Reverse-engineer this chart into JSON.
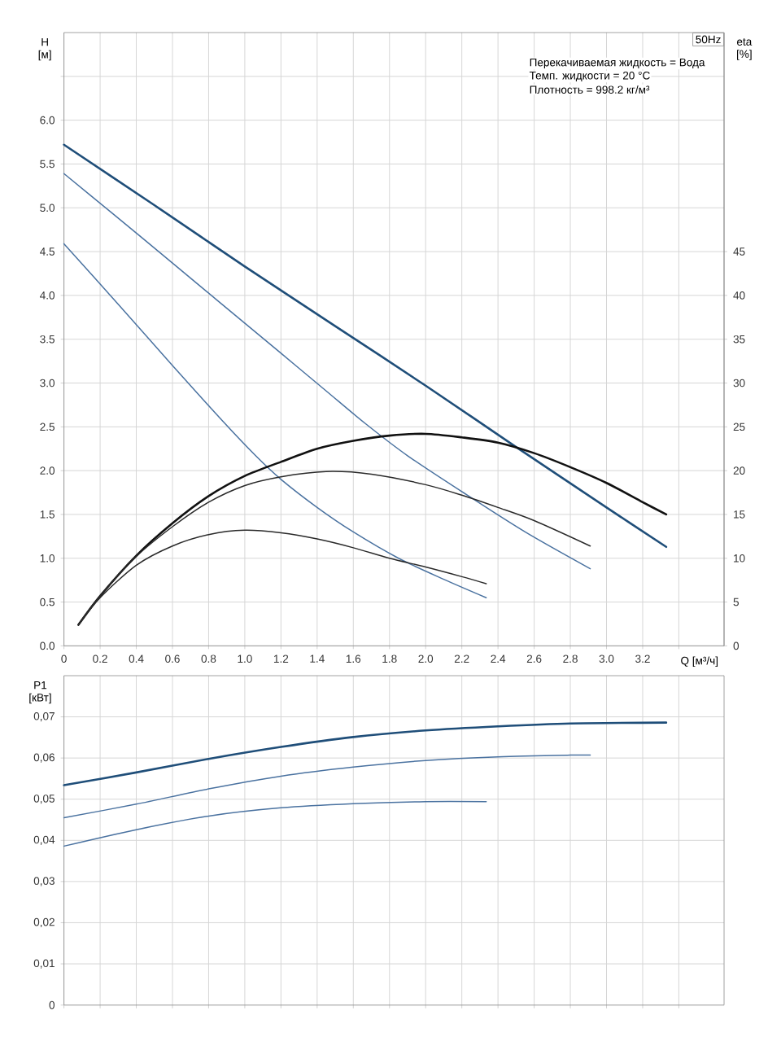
{
  "chart_data": [
    {
      "type": "line",
      "title": "50Hz",
      "annotations": [
        "Перекачиваемая жидкость = Вода",
        "Темп. жидкости = 20 °C",
        "Плотность = 998.2 кг/м³"
      ],
      "xlabel": "Q [м³/ч]",
      "ylabel": "H [м]",
      "y2label": "eta [%]",
      "xlim": [
        0,
        3.65
      ],
      "ylim": [
        0,
        7
      ],
      "y2lim": [
        0,
        70
      ],
      "xticks": [
        0,
        0.2,
        0.4,
        0.6,
        0.8,
        {
          "value": 1,
          "label": "1.0"
        },
        1.2,
        1.4,
        1.6,
        1.8,
        {
          "value": 2,
          "label": "2.0"
        },
        2.2,
        2.4,
        2.6,
        2.8,
        {
          "value": 3,
          "label": "3.0"
        },
        3.2,
        {
          "value": 3.4,
          "label": null
        }
      ],
      "yticks": [
        {
          "value": 0,
          "label": "0.0"
        },
        0.5,
        {
          "value": 1,
          "label": "1.0"
        },
        1.5,
        {
          "value": 2,
          "label": "2.0"
        },
        2.5,
        {
          "value": 3,
          "label": "3.0"
        },
        3.5,
        {
          "value": 4,
          "label": "4.0"
        },
        4.5,
        {
          "value": 5,
          "label": "5.0"
        },
        5.5,
        {
          "value": 6,
          "label": "6.0"
        },
        {
          "value": 6.5,
          "label": null
        }
      ],
      "y2ticks": [
        0,
        5,
        10,
        15,
        20,
        25,
        30,
        35,
        40,
        45
      ],
      "grid": true,
      "series": [
        {
          "color": "#1f4e79",
          "x": [
            0,
            0.5,
            1.0,
            1.5,
            2.0,
            2.5,
            3.0,
            3.33
          ],
          "values": [
            5.72,
            5.03,
            4.33,
            3.65,
            2.97,
            2.27,
            1.58,
            1.13
          ]
        },
        {
          "color": "#4a72a0",
          "x": [
            0,
            0.26,
            0.6,
            0.85,
            1.2,
            1.45,
            1.665,
            1.9,
            2.2,
            2.55,
            2.91
          ],
          "values": [
            5.39,
            4.95,
            4.37,
            3.94,
            3.34,
            2.91,
            2.54,
            2.17,
            1.76,
            1.3,
            0.88
          ]
        },
        {
          "color": "#4a72a0",
          "x": [
            0,
            0.3,
            0.6,
            0.88,
            1.06,
            1.2,
            1.4,
            1.6,
            1.85,
            2.1,
            2.335
          ],
          "values": [
            4.59,
            3.9,
            3.2,
            2.56,
            2.17,
            1.9,
            1.58,
            1.3,
            1.0,
            0.76,
            0.55
          ]
        },
        {
          "color": "#111111",
          "axis": "y2",
          "x": [
            0.08,
            0.2,
            0.4,
            0.6,
            0.8,
            1.0,
            1.2,
            1.4,
            1.6,
            1.8,
            2.0,
            2.2,
            2.4,
            2.6,
            2.8,
            3.0,
            3.2,
            3.33
          ],
          "values": [
            2.4,
            5.7,
            10.3,
            14.0,
            17.1,
            19.4,
            21.0,
            22.5,
            23.4,
            24.0,
            24.2,
            23.8,
            23.2,
            22.0,
            20.4,
            18.6,
            16.4,
            15.0
          ]
        },
        {
          "color": "#2a2a2a",
          "axis": "y2",
          "x": [
            0.08,
            0.2,
            0.4,
            0.6,
            0.8,
            1.0,
            1.2,
            1.45,
            1.7,
            2.0,
            2.2,
            2.4,
            2.6,
            2.91
          ],
          "values": [
            2.4,
            5.7,
            10.2,
            13.6,
            16.4,
            18.3,
            19.3,
            19.9,
            19.6,
            18.4,
            17.2,
            15.8,
            14.3,
            11.4
          ]
        },
        {
          "color": "#2a2a2a",
          "axis": "y2",
          "x": [
            0.08,
            0.2,
            0.4,
            0.6,
            0.8,
            1.0,
            1.2,
            1.4,
            1.6,
            1.8,
            2.0,
            2.2,
            2.335
          ],
          "values": [
            2.4,
            5.5,
            9.2,
            11.4,
            12.7,
            13.2,
            12.9,
            12.2,
            11.2,
            10.0,
            9.0,
            7.9,
            7.1
          ]
        }
      ]
    },
    {
      "type": "line",
      "ylabel": "P1 [кВт]",
      "xlim": [
        0,
        3.65
      ],
      "ylim": [
        0,
        0.08
      ],
      "tick_labels": "y",
      "grid": true,
      "xticks": [
        0,
        0.2,
        0.4,
        0.6,
        0.8,
        1.0,
        1.2,
        1.4,
        1.6,
        1.8,
        2.0,
        2.2,
        2.4,
        2.6,
        2.8,
        3.0,
        3.2,
        3.4
      ],
      "yticks": [
        0,
        {
          "value": 0.01,
          "label": "0,01"
        },
        {
          "value": 0.02,
          "label": "0,02"
        },
        {
          "value": 0.03,
          "label": "0,03"
        },
        {
          "value": 0.04,
          "label": "0,04"
        },
        {
          "value": 0.05,
          "label": "0,05"
        },
        {
          "value": 0.06,
          "label": "0,06"
        },
        {
          "value": 0.07,
          "label": "0,07"
        }
      ],
      "series": [
        {
          "color": "#1f4e79",
          "x": [
            0,
            0.4,
            0.8,
            1.2,
            1.6,
            2.0,
            2.4,
            2.8,
            3.33
          ],
          "values": [
            0.0534,
            0.0565,
            0.0598,
            0.0627,
            0.0651,
            0.0667,
            0.0677,
            0.0684,
            0.0686
          ]
        },
        {
          "color": "#4a72a0",
          "x": [
            0,
            0.4,
            0.8,
            1.2,
            1.6,
            2.0,
            2.4,
            2.8,
            2.91
          ],
          "values": [
            0.0455,
            0.0488,
            0.0525,
            0.0556,
            0.0578,
            0.0594,
            0.0603,
            0.0607,
            0.0607
          ]
        },
        {
          "color": "#4a72a0",
          "x": [
            0,
            0.4,
            0.8,
            1.2,
            1.6,
            2.0,
            2.335
          ],
          "values": [
            0.0386,
            0.0426,
            0.0459,
            0.0479,
            0.0489,
            0.0494,
            0.0494
          ]
        }
      ]
    }
  ]
}
